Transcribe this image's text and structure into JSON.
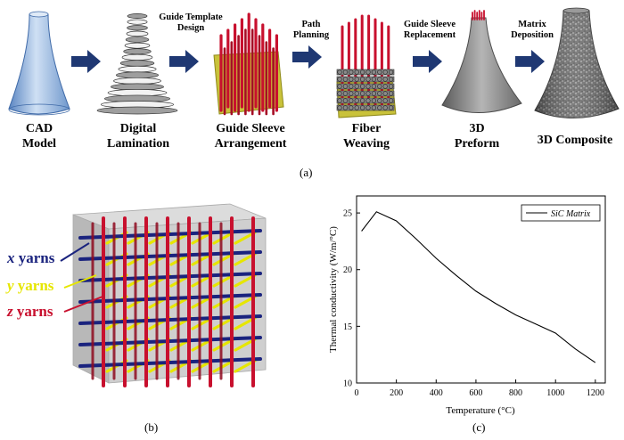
{
  "panel_a": {
    "stages": [
      {
        "line1": "CAD",
        "line2": "Model"
      },
      {
        "line1": "Digital",
        "line2": "Lamination"
      },
      {
        "line1": "Guide Sleeve",
        "line2": "Arrangement"
      },
      {
        "line1": "Fiber",
        "line2": "Weaving"
      },
      {
        "line1": "3D",
        "line2": "Preform"
      },
      {
        "line1": "3D Composite",
        "line2": ""
      }
    ],
    "steps": [
      {
        "line1": "Guide Template",
        "line2": "Design"
      },
      {
        "line1": "Path",
        "line2": "Planning"
      },
      {
        "line1": "Guide Sleeve",
        "line2": "Replacement"
      },
      {
        "line1": "Matrix",
        "line2": "Deposition"
      }
    ],
    "label": "(a)",
    "colors": {
      "arrow": "#1f3873",
      "cad": "#7fa6d6",
      "sleeve": "#c8102e",
      "plate": "#c9c23a",
      "preform": "#8a8a8a",
      "composite": "#6d6d6d"
    }
  },
  "panel_b": {
    "label": "(b)",
    "yarns": [
      {
        "prefix": "x",
        "suffix": " yarns",
        "color": "#1a237e"
      },
      {
        "prefix": "y",
        "suffix": " yarns",
        "color": "#e6e600"
      },
      {
        "prefix": "z",
        "suffix": " yarns",
        "color": "#c8102e"
      }
    ],
    "colors": {
      "cube": "#c8c8c8"
    }
  },
  "panel_c": {
    "label": "(c)",
    "chart_data": {
      "type": "line",
      "title": "",
      "xlabel": "Temperature (°C)",
      "ylabel": "Thermal conductivity (W/m/°C)",
      "xlim": [
        0,
        1250
      ],
      "ylim": [
        10,
        26.5
      ],
      "xticks": [
        0,
        200,
        400,
        600,
        800,
        1000,
        1200
      ],
      "yticks": [
        10,
        15,
        20,
        25
      ],
      "series": [
        {
          "name": "SiC Matrix",
          "x": [
            25,
            100,
            200,
            300,
            400,
            500,
            600,
            700,
            800,
            900,
            1000,
            1100,
            1200
          ],
          "y": [
            23.4,
            25.1,
            24.3,
            22.7,
            21.0,
            19.5,
            18.1,
            17.0,
            16.0,
            15.2,
            14.4,
            13.0,
            11.8
          ]
        }
      ],
      "legend": "top-right",
      "grid": false
    }
  }
}
